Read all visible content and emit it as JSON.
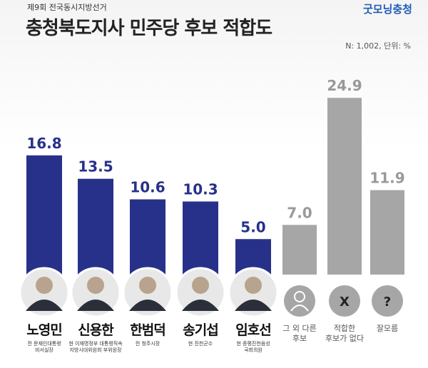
{
  "chart_data": {
    "type": "bar",
    "pretitle": "제9회 전국동시지방선거",
    "title": "충청북도지사 민주당 후보 적합도",
    "brand": "굿모닝충청",
    "note": "N: 1,002, 단위: %",
    "categories": [
      "노영민",
      "신용한",
      "한범덕",
      "송기섭",
      "임호선",
      "그 외 다른\n후보",
      "적합한\n후보가 없다",
      "잘모름"
    ],
    "descriptions": [
      "전 문재인대통령\n비서실장",
      "현 이재명정부 대통령직속\n지방시대위원회 부위원장",
      "전 청주시장",
      "현 진천군수",
      "현 증평진천음성\n국회의원",
      null,
      null,
      null
    ],
    "values": [
      16.8,
      13.5,
      10.6,
      10.3,
      5.0,
      7.0,
      24.9,
      11.9
    ],
    "value_labels": [
      "16.8",
      "13.5",
      "10.6",
      "10.3",
      "5.0",
      "7.0",
      "24.9",
      "11.9"
    ],
    "colors": [
      "#28318a",
      "#28318a",
      "#28318a",
      "#28318a",
      "#28318a",
      "#a6a6a6",
      "#a6a6a6",
      "#a6a6a6"
    ],
    "icons": [
      null,
      null,
      null,
      null,
      null,
      "",
      "X",
      "?"
    ]
  }
}
